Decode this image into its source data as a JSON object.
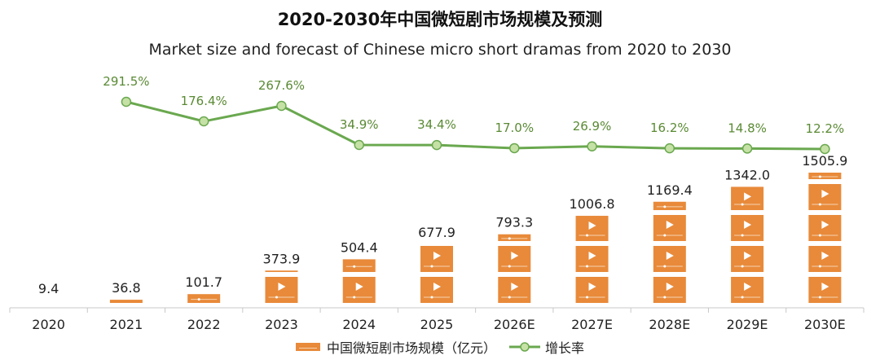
{
  "chart_data": {
    "type": "bar",
    "title": "2020-2030年中国微短剧市场规模及预测",
    "subtitle": "Market size and forecast of Chinese micro short dramas from 2020 to 2030",
    "categories": [
      "2020",
      "2021",
      "2022",
      "2023",
      "2024",
      "2025",
      "2026E",
      "2027E",
      "2028E",
      "2029E",
      "2030E"
    ],
    "series": [
      {
        "name": "中国微短剧市场规模（亿元）",
        "kind": "bar",
        "values": [
          9.4,
          36.8,
          101.7,
          373.9,
          504.4,
          677.9,
          793.3,
          1006.8,
          1169.4,
          1342.0,
          1505.9
        ],
        "labels": [
          "9.4",
          "36.8",
          "101.7",
          "373.9",
          "504.4",
          "677.9",
          "793.3",
          "1006.8",
          "1169.4",
          "1342.0",
          "1505.9"
        ]
      },
      {
        "name": "增长率",
        "kind": "line",
        "values": [
          null,
          291.5,
          176.4,
          267.6,
          34.9,
          34.4,
          17.0,
          26.9,
          16.2,
          14.8,
          12.2
        ],
        "labels": [
          "",
          "291.5%",
          "176.4%",
          "267.6%",
          "34.9%",
          "34.4%",
          "17.0%",
          "26.9%",
          "16.2%",
          "14.8%",
          "12.2%"
        ]
      }
    ],
    "ylim_bar": [
      0,
      1650
    ],
    "ylim_line": [
      0,
      330
    ],
    "legend_position": "bottom",
    "grid": false
  },
  "colors": {
    "bar": "#e88a3a",
    "bar_stripe": "#f6d2b1",
    "line": "#6aa84f",
    "marker_fill": "#c5e1a5",
    "axis": "#c8c8c8"
  },
  "legend": {
    "bar_label": "中国微短剧市场规模（亿元）",
    "line_label": "增长率"
  }
}
